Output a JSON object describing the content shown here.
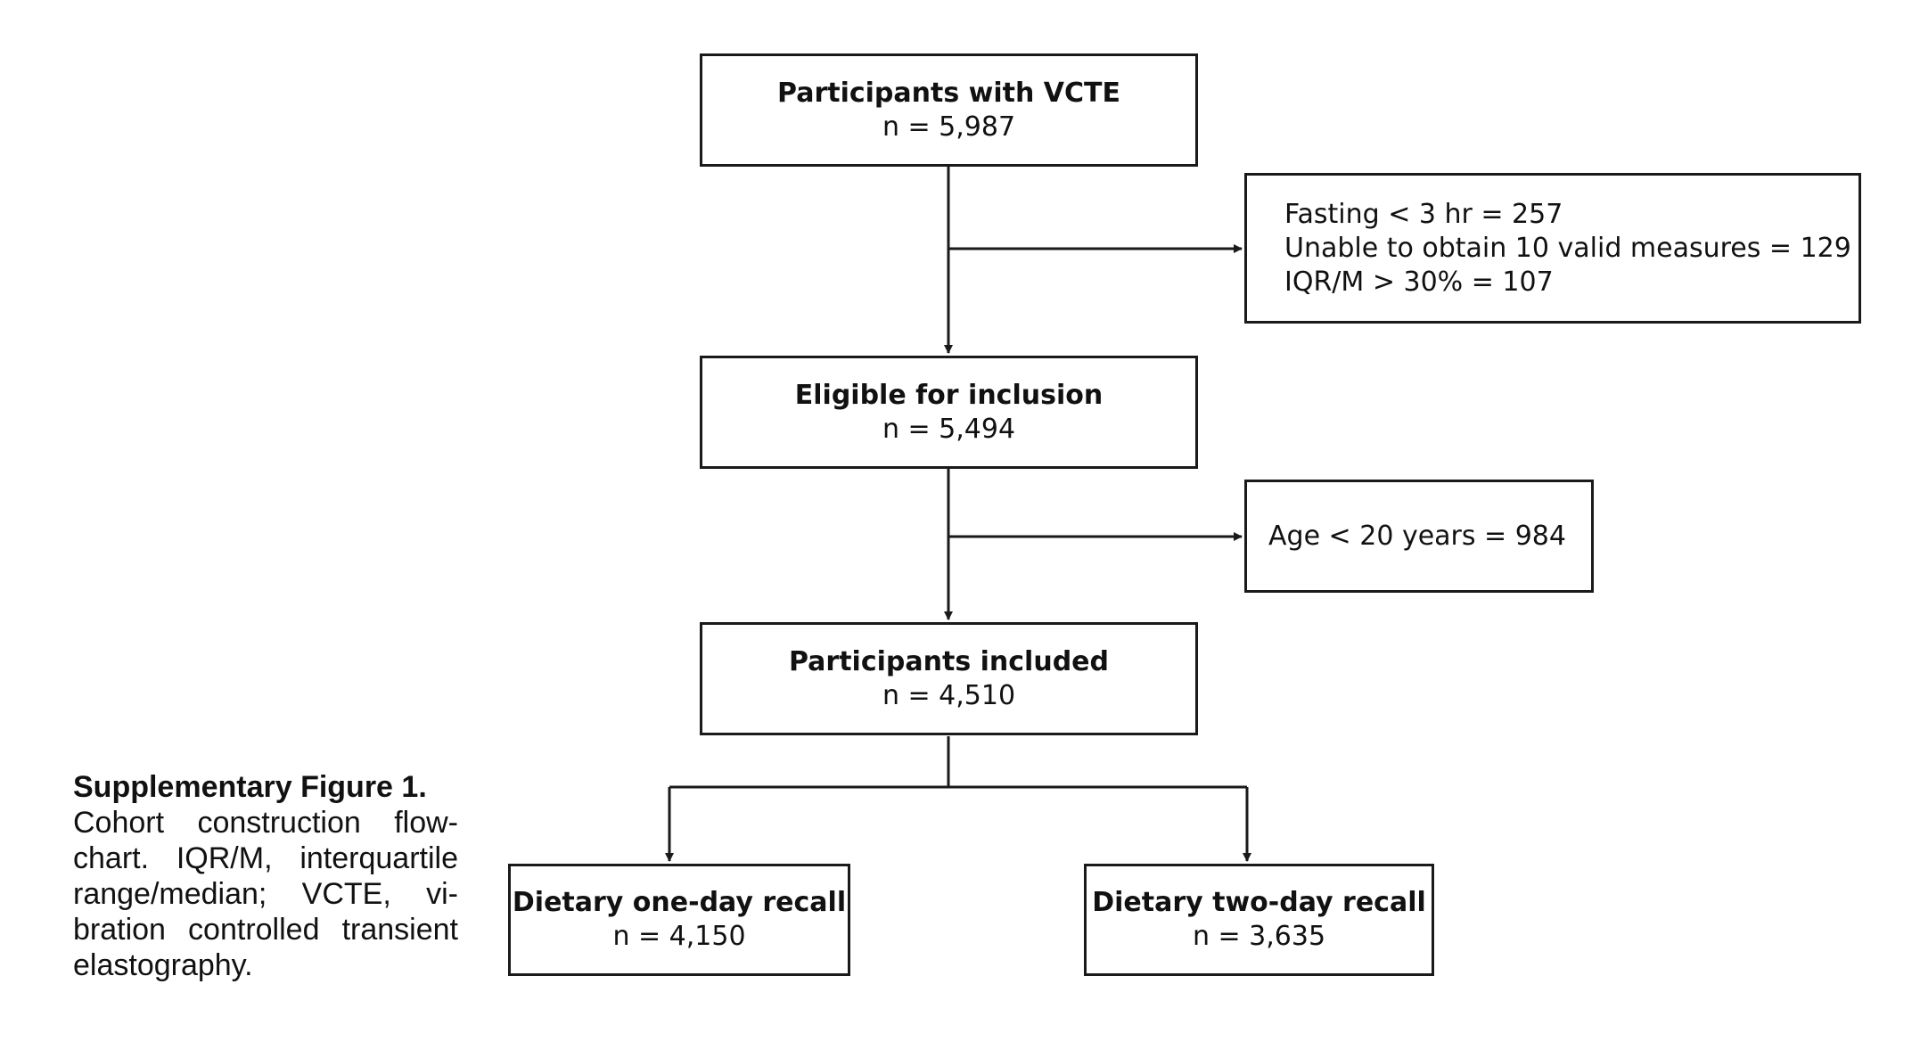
{
  "flowchart": {
    "boxes": {
      "vcte": {
        "title": "Participants with VCTE",
        "count": "n = 5,987"
      },
      "exclusion1": {
        "lines": [
          "Fasting < 3 hr = 257",
          "Unable to obtain 10 valid measures = 129",
          "IQR/M > 30% = 107"
        ]
      },
      "eligible": {
        "title": "Eligible for inclusion",
        "count": "n = 5,494"
      },
      "exclusion2": {
        "lines": [
          "Age < 20 years = 984"
        ]
      },
      "included": {
        "title": "Participants included",
        "count": "n = 4,510"
      },
      "one_day": {
        "title": "Dietary one-day recall",
        "count": "n = 4,150"
      },
      "two_day": {
        "title": "Dietary two-day recall",
        "count": "n = 3,635"
      }
    }
  },
  "caption": {
    "title": "Supplementary Figure 1.",
    "body": "Cohort construction flow-chart. IQR/M, interquartile range/median; VCTE, vi-bration controlled transient elastography."
  },
  "colors": {
    "line": "#1a1a1a",
    "text": "#111111"
  }
}
